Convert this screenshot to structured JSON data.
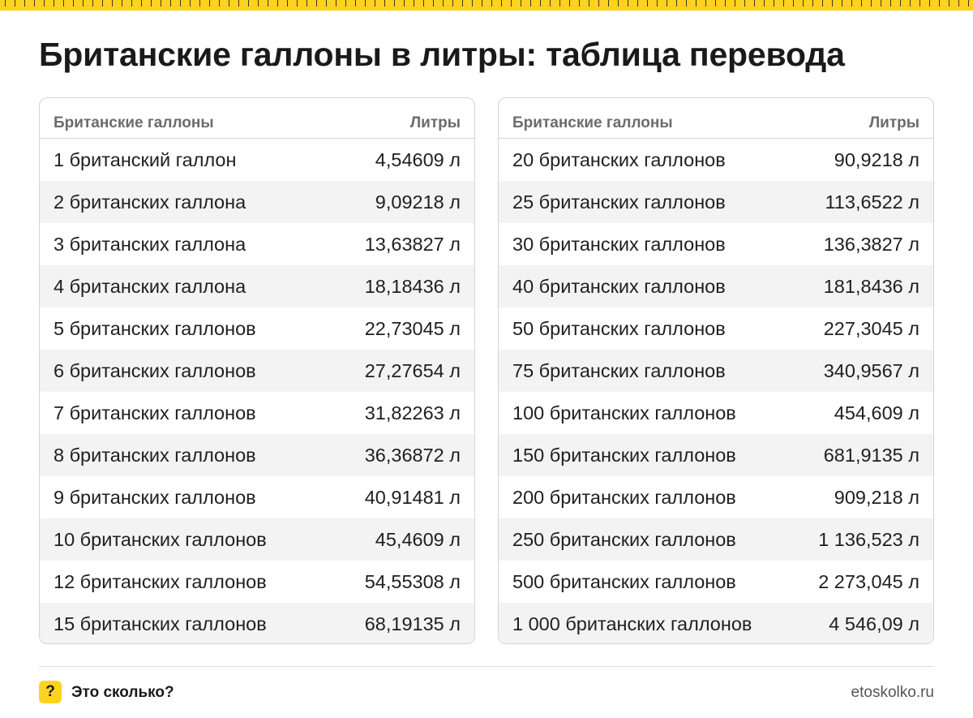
{
  "title": "Британские галлоны в литры: таблица перевода",
  "tables": [
    {
      "header": {
        "col1": "Британские галлоны",
        "col2": "Литры"
      },
      "rows": [
        {
          "label": "1 британский галлон",
          "value": "4,54609 л"
        },
        {
          "label": "2 британских галлона",
          "value": "9,09218 л"
        },
        {
          "label": "3 британских галлона",
          "value": "13,63827 л"
        },
        {
          "label": "4 британских галлона",
          "value": "18,18436 л"
        },
        {
          "label": "5 британских галлонов",
          "value": "22,73045 л"
        },
        {
          "label": "6 британских галлонов",
          "value": "27,27654 л"
        },
        {
          "label": "7 британских галлонов",
          "value": "31,82263 л"
        },
        {
          "label": "8 британских галлонов",
          "value": "36,36872 л"
        },
        {
          "label": "9 британских галлонов",
          "value": "40,91481 л"
        },
        {
          "label": "10 британских галлонов",
          "value": "45,4609 л"
        },
        {
          "label": "12 британских галлонов",
          "value": "54,55308 л"
        },
        {
          "label": "15 британских галлонов",
          "value": "68,19135 л"
        }
      ]
    },
    {
      "header": {
        "col1": "Британские галлоны",
        "col2": "Литры"
      },
      "rows": [
        {
          "label": "20 британских галлонов",
          "value": "90,9218 л"
        },
        {
          "label": "25 британских галлонов",
          "value": "113,6522 л"
        },
        {
          "label": "30 британских галлонов",
          "value": "136,3827 л"
        },
        {
          "label": "40 британских галлонов",
          "value": "181,8436 л"
        },
        {
          "label": "50 британских галлонов",
          "value": "227,3045 л"
        },
        {
          "label": "75 британских галлонов",
          "value": "340,9567 л"
        },
        {
          "label": "100 британских галлонов",
          "value": "454,609 л"
        },
        {
          "label": "150 британских галлонов",
          "value": "681,9135 л"
        },
        {
          "label": "200 британских галлонов",
          "value": "909,218 л"
        },
        {
          "label": "250 британских галлонов",
          "value": "1 136,523 л"
        },
        {
          "label": "500 британских галлонов",
          "value": "2 273,045 л"
        },
        {
          "label": "1 000 британских галлонов",
          "value": "4 546,09 л"
        }
      ]
    }
  ],
  "footer": {
    "logo_symbol": "?",
    "brand": "Это сколько?",
    "site": "etoskolko.ru"
  },
  "colors": {
    "accent": "#ffd21f",
    "row_alt": "#f3f3f3",
    "header_text": "#6b6b6b",
    "border": "#d4d4d4"
  }
}
